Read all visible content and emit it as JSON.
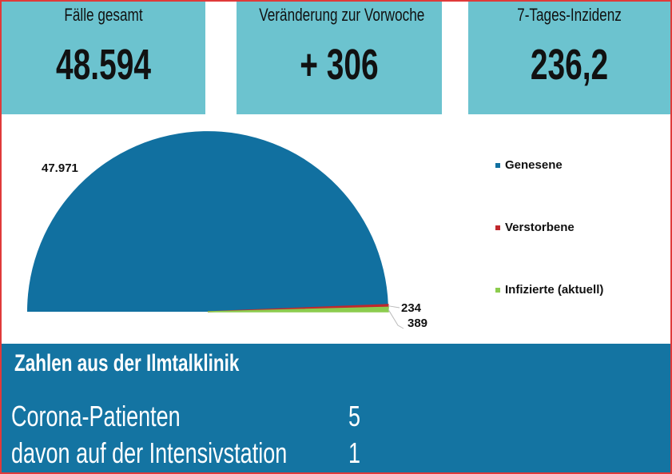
{
  "kpis": [
    {
      "label": "Fälle gesamt",
      "value": "48.594"
    },
    {
      "label": "Veränderung zur Vorwoche",
      "value": "+ 306"
    },
    {
      "label": "7-Tages-Inzidenz",
      "value": "236,2"
    }
  ],
  "chart_data": {
    "type": "pie",
    "subtype": "half-pie",
    "title": "",
    "categories": [
      "Genesene",
      "Verstorbene",
      "Infizierte (aktuell)"
    ],
    "values": [
      47971,
      234,
      389
    ],
    "data_labels": [
      "47.971",
      "234",
      "389"
    ],
    "colors": [
      "#1170a0",
      "#c0282d",
      "#8ccc4e"
    ],
    "legend_position": "right"
  },
  "clinic": {
    "title": "Zahlen aus der Ilmtalklinik",
    "rows": [
      {
        "label": "Corona-Patienten",
        "value": "5"
      },
      {
        "label": "davon auf der Intensivstation",
        "value": "1"
      }
    ]
  }
}
